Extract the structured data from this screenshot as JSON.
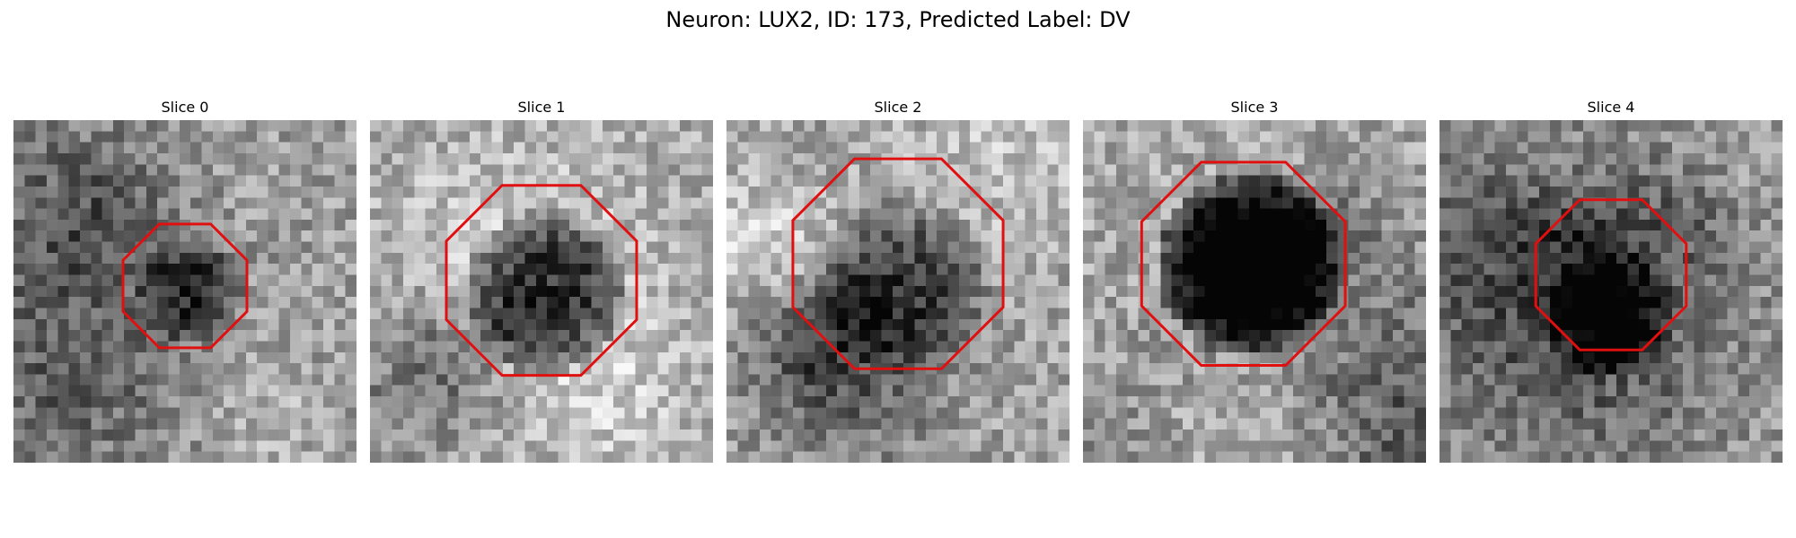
{
  "title": "Neuron: LUX2, ID: 173, Predicted Label: DV",
  "overlay_color": "#e01010",
  "panels": [
    {
      "label": "Slice 0",
      "roi": "small-round"
    },
    {
      "label": "Slice 1",
      "roi": "large-dark"
    },
    {
      "label": "Slice 2",
      "roi": "large-faint"
    },
    {
      "label": "Slice 3",
      "roi": "large-very-dark"
    },
    {
      "label": "Slice 4",
      "roi": "small-round"
    }
  ]
}
